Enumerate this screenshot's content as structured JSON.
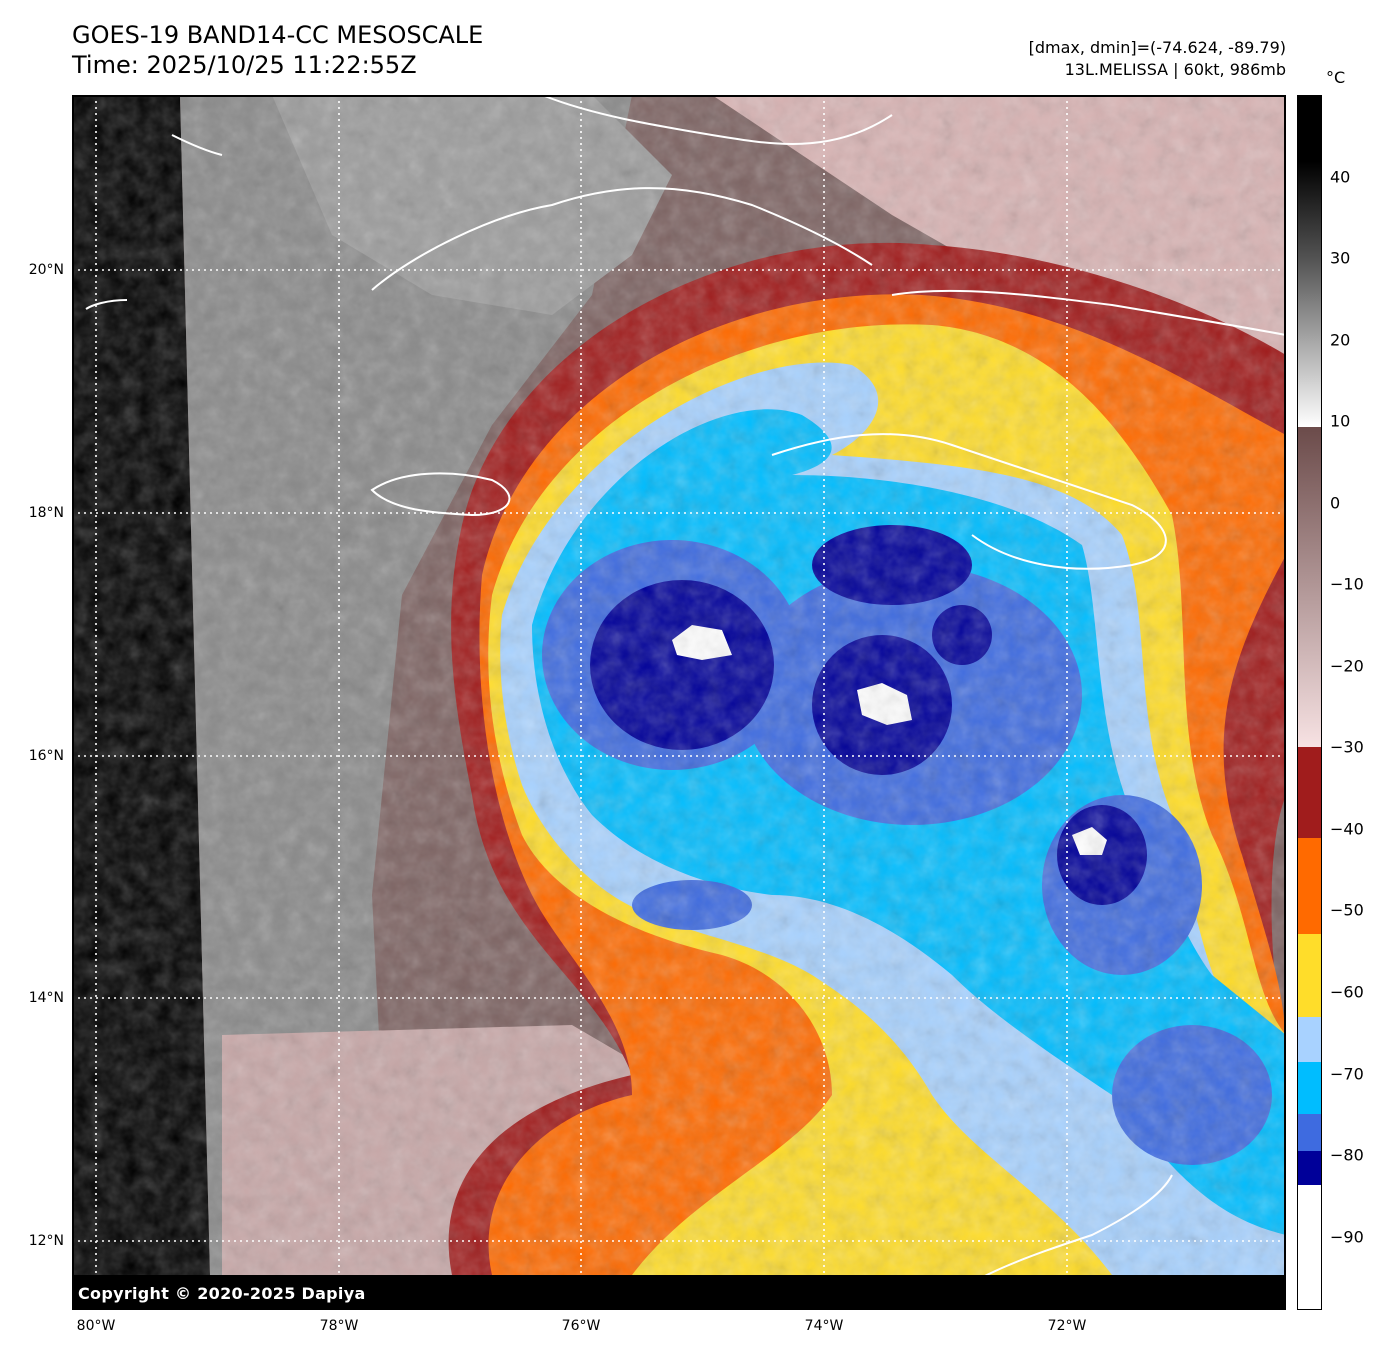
{
  "header": {
    "title_line1": "GOES-19 BAND14-CC MESOSCALE",
    "title_line2": "Time: 2025/10/25 11:22:55Z",
    "range_text": "[dmax, dmin]=(-74.624, -89.79)",
    "storm_text": "13L.MELISSA | 60kt, 986mb"
  },
  "map": {
    "lat_labels": [
      "20°N",
      "18°N",
      "16°N",
      "14°N",
      "12°N"
    ],
    "lon_labels": [
      "80°W",
      "78°W",
      "76°W",
      "74°W",
      "72°W"
    ],
    "copyright": "Copyright © 2020-2025 Dapiya"
  },
  "colorbar": {
    "unit": "°C",
    "ticks": [
      "40",
      "30",
      "20",
      "10",
      "0",
      "−10",
      "−20",
      "−30",
      "−40",
      "−50",
      "−60",
      "−70",
      "−80",
      "−90"
    ],
    "tick_values": [
      40,
      30,
      20,
      10,
      0,
      -10,
      -20,
      -30,
      -40,
      -50,
      -60,
      -70,
      -80,
      -90
    ],
    "range": [
      50,
      -99
    ],
    "colors": {
      "warm_black": "#000000",
      "gray": "#808080",
      "white": "#ffffff",
      "brown": "#7b5a58",
      "pink": "#f2d6d8",
      "dark_red": "#a01c1c",
      "orange": "#ff6a00",
      "yellow": "#ffdd2a",
      "light_blue": "#a8d2ff",
      "cyan": "#00bdff",
      "royal_blue": "#3e6be0",
      "navy": "#000099"
    }
  }
}
